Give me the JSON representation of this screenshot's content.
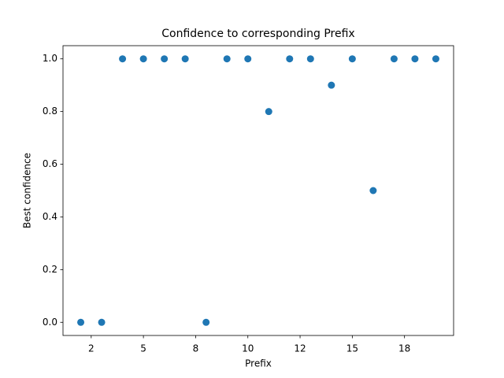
{
  "chart_data": {
    "type": "scatter",
    "title": "Confidence to corresponding Prefix",
    "x_label": "Prefix",
    "y_label": "Best confidence",
    "series": [
      {
        "color": "#1f77b4",
        "x": [
          2,
          3,
          4,
          5,
          6,
          7,
          8,
          9,
          10,
          11,
          12,
          13,
          14,
          15,
          16,
          17,
          18,
          19
        ],
        "values": [
          0,
          0,
          1,
          1,
          1,
          1,
          0,
          1,
          1,
          0.8,
          1,
          1,
          0.9,
          1,
          0.5,
          1,
          1,
          1
        ]
      }
    ],
    "xlim": [
      1.15,
      19.85
    ],
    "xticks": [
      {
        "value": 2.5,
        "label": "2"
      },
      {
        "value": 5,
        "label": "5"
      },
      {
        "value": 7.5,
        "label": "8"
      },
      {
        "value": 10,
        "label": "10"
      },
      {
        "value": 12.5,
        "label": "12"
      },
      {
        "value": 15,
        "label": "15"
      },
      {
        "value": 17.5,
        "label": "18"
      }
    ],
    "ylim": [
      -0.05,
      1.05
    ],
    "yticks": [
      {
        "value": 0,
        "label": "0.0"
      },
      {
        "value": 0.2,
        "label": "0.2"
      },
      {
        "value": 0.4,
        "label": "0.4"
      },
      {
        "value": 0.6,
        "label": "0.6"
      },
      {
        "value": 0.8,
        "label": "0.8"
      },
      {
        "value": 1,
        "label": "1.0"
      }
    ],
    "grid": false
  }
}
